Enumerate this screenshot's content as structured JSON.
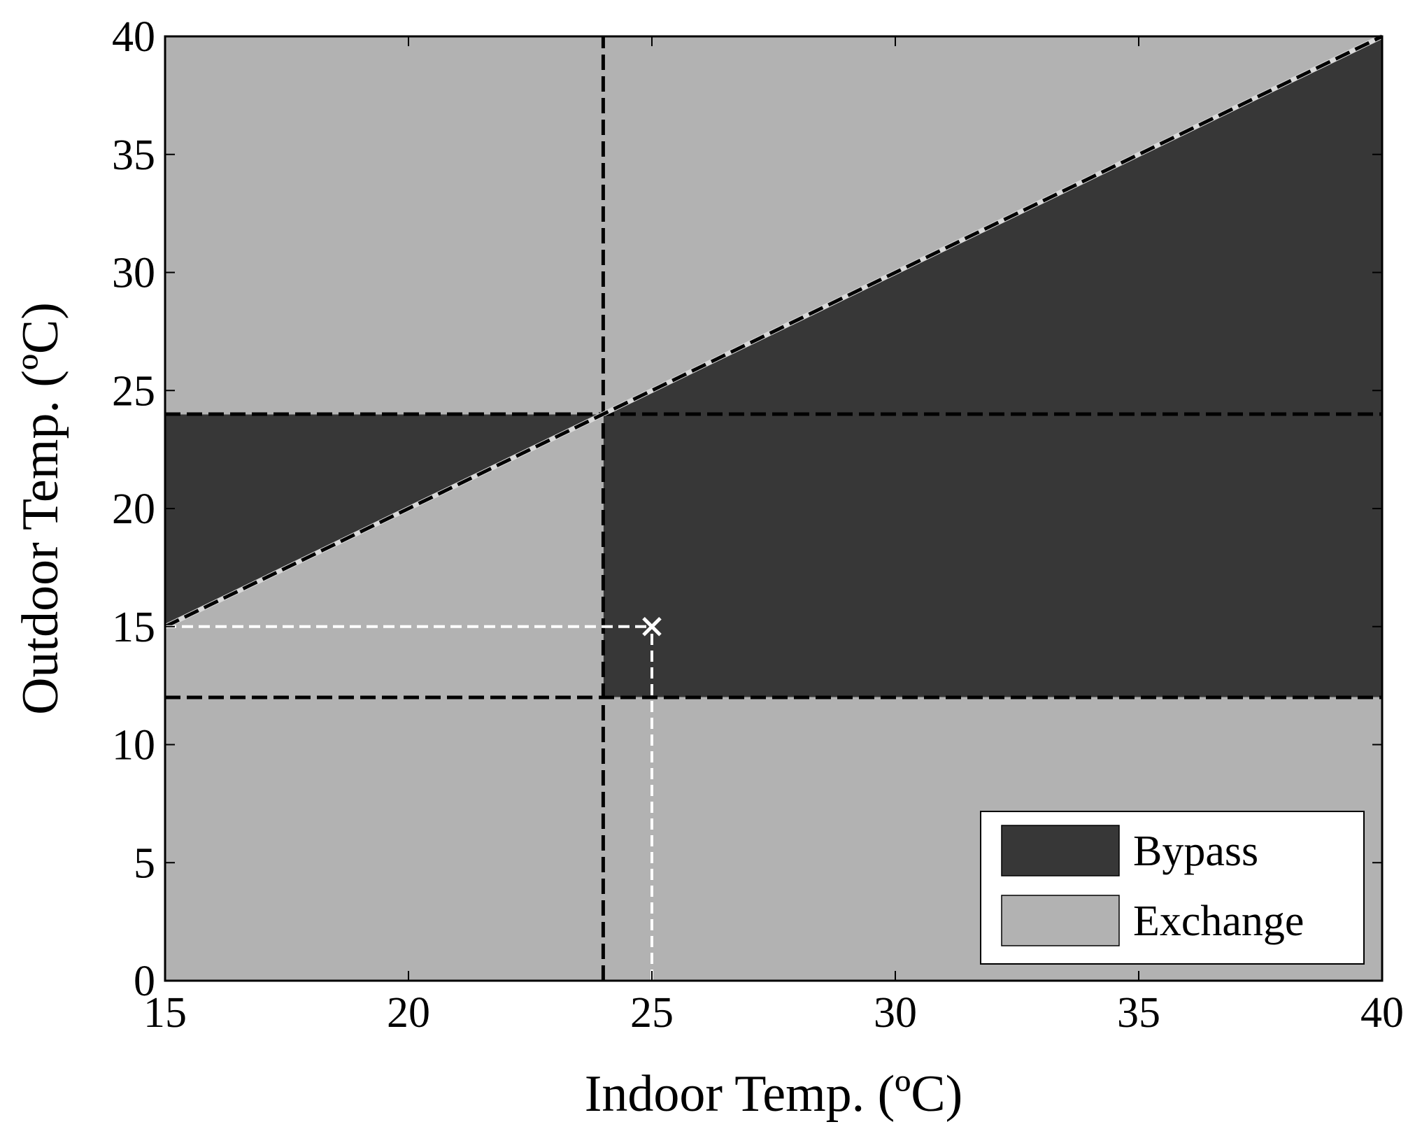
{
  "chart_data": {
    "type": "area",
    "xlabel": "Indoor Temp. (ºC)",
    "ylabel": "Outdoor Temp. (ºC)",
    "xlim": [
      15,
      40
    ],
    "ylim": [
      0,
      40
    ],
    "xticks": [
      "15",
      "20",
      "25",
      "30",
      "35",
      "40"
    ],
    "yticks": [
      "0",
      "5",
      "10",
      "15",
      "20",
      "25",
      "30",
      "35",
      "40"
    ],
    "grid": false,
    "legend_position": "bottom-right",
    "colors": {
      "bypass": "#373737",
      "exchange": "#b2b2b2",
      "threshold_lines": "#000000",
      "operating_point": "#ffffff"
    },
    "regions": [
      {
        "name": "Bypass",
        "polygons": [
          [
            [
              15,
              15
            ],
            [
              24,
              24
            ],
            [
              15,
              24
            ]
          ],
          [
            [
              24,
              12
            ],
            [
              40,
              12
            ],
            [
              40,
              40
            ],
            [
              24,
              24
            ]
          ]
        ]
      },
      {
        "name": "Exchange",
        "polygons": [
          [
            [
              15,
              0
            ],
            [
              40,
              0
            ],
            [
              40,
              12
            ],
            [
              24,
              12
            ],
            [
              24,
              24
            ],
            [
              15,
              15
            ]
          ],
          [
            [
              15,
              24
            ],
            [
              24,
              24
            ],
            [
              40,
              40
            ],
            [
              15,
              40
            ]
          ]
        ]
      }
    ],
    "threshold_lines": [
      {
        "kind": "vertical",
        "x": 24,
        "y_range": [
          0,
          40
        ]
      },
      {
        "kind": "horizontal",
        "y": 24,
        "x_range": [
          15,
          40
        ]
      },
      {
        "kind": "horizontal",
        "y": 12,
        "x_range": [
          15,
          40
        ]
      },
      {
        "kind": "diagonal",
        "from": [
          15,
          15
        ],
        "to": [
          40,
          40
        ]
      }
    ],
    "operating_point": {
      "x": 25,
      "y": 15,
      "marker": "x",
      "guides": [
        {
          "from": [
            15,
            15
          ],
          "to": [
            25,
            15
          ]
        },
        {
          "from": [
            25,
            0
          ],
          "to": [
            25,
            15
          ]
        }
      ]
    },
    "legend": [
      {
        "label": "Bypass",
        "region": "Bypass"
      },
      {
        "label": "Exchange",
        "region": "Exchange"
      }
    ]
  }
}
